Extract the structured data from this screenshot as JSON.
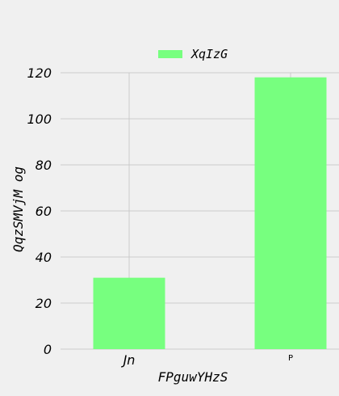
{
  "chart_data": {
    "type": "bar",
    "categories": [
      "Jn",
      "P"
    ],
    "category_label_styles": [
      "italic",
      "small"
    ],
    "series": [
      {
        "name": "XqIzG",
        "values": [
          31,
          118
        ],
        "color": "#77ff7f"
      }
    ],
    "xlabel": "FPguwYHzS",
    "ylabel": "QqzSMVjM og",
    "ylim": [
      0,
      120
    ],
    "yticks": [
      0,
      20,
      40,
      60,
      80,
      100,
      120
    ],
    "grid": true,
    "legend_position": "top-center",
    "background": "#f0f0f0",
    "grid_color": "#cbcbcb"
  }
}
